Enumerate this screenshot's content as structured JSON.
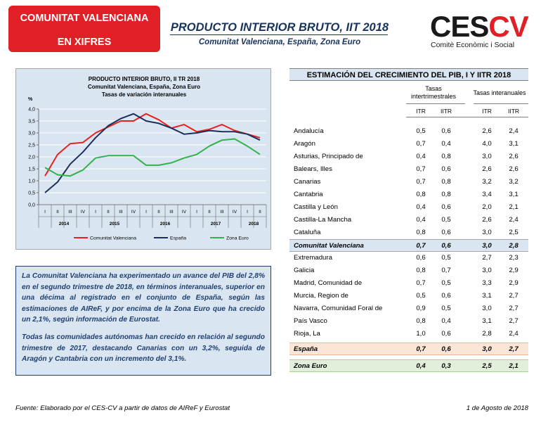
{
  "header": {
    "badge_line1": "COMUNITAT VALENCIANA",
    "badge_line2": "EN XIFRES",
    "title": "PRODUCTO INTERIOR BRUTO, IIT 2018",
    "subtitle": "Comunitat Valenciana, España, Zona Euro",
    "logo_text": "CESCV",
    "logo_caption": "Comitè Econòmic i Social",
    "colors": {
      "badge": "#e11f26",
      "title": "#17335e",
      "logo_dark": "#1a1a1a",
      "logo_red": "#e11f26"
    }
  },
  "chart_data": {
    "type": "line",
    "title": "PRODUCTO INTERIOR BRUTO, II TR 2018",
    "subtitle1": "Comunitat Valenciana, España, Zona Euro",
    "subtitle2": "Tasas de variación interanuales",
    "ylabel": "%",
    "ylim": [
      0,
      4
    ],
    "yticks": [
      "0,0",
      "0,5",
      "1,0",
      "1,5",
      "2,0",
      "2,5",
      "3,0",
      "3,5",
      "4,0"
    ],
    "quarters": [
      "I",
      "II",
      "III",
      "IV",
      "I",
      "II",
      "III",
      "IV",
      "I",
      "II",
      "III",
      "IV",
      "I",
      "II",
      "III",
      "IV",
      "I",
      "II"
    ],
    "years": [
      "2014",
      "2015",
      "2016",
      "2017",
      "2018"
    ],
    "series": [
      {
        "name": "Comunitat Valenciana",
        "color": "#e8211f",
        "values": [
          1.2,
          2.1,
          2.55,
          2.6,
          3.0,
          3.25,
          3.5,
          3.5,
          3.8,
          3.55,
          3.2,
          3.35,
          3.05,
          3.15,
          3.35,
          3.1,
          2.95,
          2.8
        ]
      },
      {
        "name": "España",
        "color": "#1b2f5b",
        "values": [
          0.5,
          0.95,
          1.7,
          2.2,
          2.8,
          3.3,
          3.6,
          3.8,
          3.5,
          3.4,
          3.2,
          2.95,
          3.0,
          3.1,
          3.05,
          3.05,
          2.95,
          2.7
        ]
      },
      {
        "name": "Zona Euro",
        "color": "#33b14a",
        "values": [
          1.55,
          1.25,
          1.2,
          1.45,
          1.95,
          2.05,
          2.05,
          2.05,
          1.65,
          1.65,
          1.75,
          1.95,
          2.1,
          2.45,
          2.7,
          2.75,
          2.45,
          2.1
        ]
      }
    ]
  },
  "commentary": {
    "para1": "La Comunitat Valenciana ha experimentado un avance del PIB del 2,8% en el segundo trimestre de 2018, en términos interanuales, superior en una décima al registrado en el conjunto de España, según las estimaciones de AIReF, y por encima de la Zona Euro que ha crecido un 2,1%, según información de Eurostat.",
    "para2": "Todas las comunidades autónomas han crecido en relación al segundo trimestre de 2017, destacando Canarias con un 3,2%, seguida de Aragón y Cantabria con un incremento del 3,1%."
  },
  "table": {
    "title": "ESTIMACIÓN DEL CRECIMIENTO DEL PIB, I Y IITR 2018",
    "group1": "Tasas intertrimestrales",
    "group2": "Tasas interanuales",
    "cols": [
      "ITR",
      "IITR",
      "ITR",
      "IITR"
    ],
    "rows": [
      {
        "name": "Andalucía",
        "v": [
          "0,5",
          "0,6",
          "2,6",
          "2,4"
        ]
      },
      {
        "name": "Aragón",
        "v": [
          "0,7",
          "0,4",
          "4,0",
          "3,1"
        ]
      },
      {
        "name": "Asturias, Principado de",
        "v": [
          "0,4",
          "0,8",
          "3,0",
          "2,6"
        ]
      },
      {
        "name": "Balears, Illes",
        "v": [
          "0,7",
          "0,6",
          "2,6",
          "2,6"
        ]
      },
      {
        "name": "Canarias",
        "v": [
          "0,7",
          "0,8",
          "3,2",
          "3,2"
        ]
      },
      {
        "name": "Cantabria",
        "v": [
          "0,8",
          "0,8",
          "3,4",
          "3,1"
        ]
      },
      {
        "name": "Castilla y León",
        "v": [
          "0,4",
          "0,6",
          "2,0",
          "2,1"
        ]
      },
      {
        "name": "Castilla-La Mancha",
        "v": [
          "0,4",
          "0,5",
          "2,6",
          "2,4"
        ]
      },
      {
        "name": "Cataluña",
        "v": [
          "0,8",
          "0,6",
          "3,0",
          "2,5"
        ]
      },
      {
        "name": "Comunitat Valenciana",
        "v": [
          "0,7",
          "0,6",
          "3,0",
          "2,8"
        ]
      },
      {
        "name": "Extremadura",
        "v": [
          "0,6",
          "0,5",
          "2,7",
          "2,3"
        ]
      },
      {
        "name": "Galicia",
        "v": [
          "0,8",
          "0,7",
          "3,0",
          "2,9"
        ]
      },
      {
        "name": "Madrid, Comunidad de",
        "v": [
          "0,7",
          "0,5",
          "3,3",
          "2,9"
        ]
      },
      {
        "name": "Murcia, Region de",
        "v": [
          "0,5",
          "0,6",
          "3,1",
          "2,7"
        ]
      },
      {
        "name": "Navarra, Comunidad Foral de",
        "v": [
          "0,9",
          "0,5",
          "3,0",
          "2,7"
        ]
      },
      {
        "name": "País Vasco",
        "v": [
          "0,8",
          "0,4",
          "3,1",
          "2,7"
        ]
      },
      {
        "name": "Rioja, La",
        "v": [
          "1,0",
          "0,6",
          "2,8",
          "2,4"
        ]
      },
      {
        "name": "España",
        "v": [
          "0,7",
          "0,6",
          "3,0",
          "2,7"
        ]
      },
      {
        "name": "Zona Euro",
        "v": [
          "0,4",
          "0,3",
          "2,5",
          "2,1"
        ]
      }
    ]
  },
  "footer": {
    "source": "Fuente: Elaborado por el CES-CV a partir de datos de AIReF y Eurostat",
    "date": "1 de Agosto de 2018"
  }
}
